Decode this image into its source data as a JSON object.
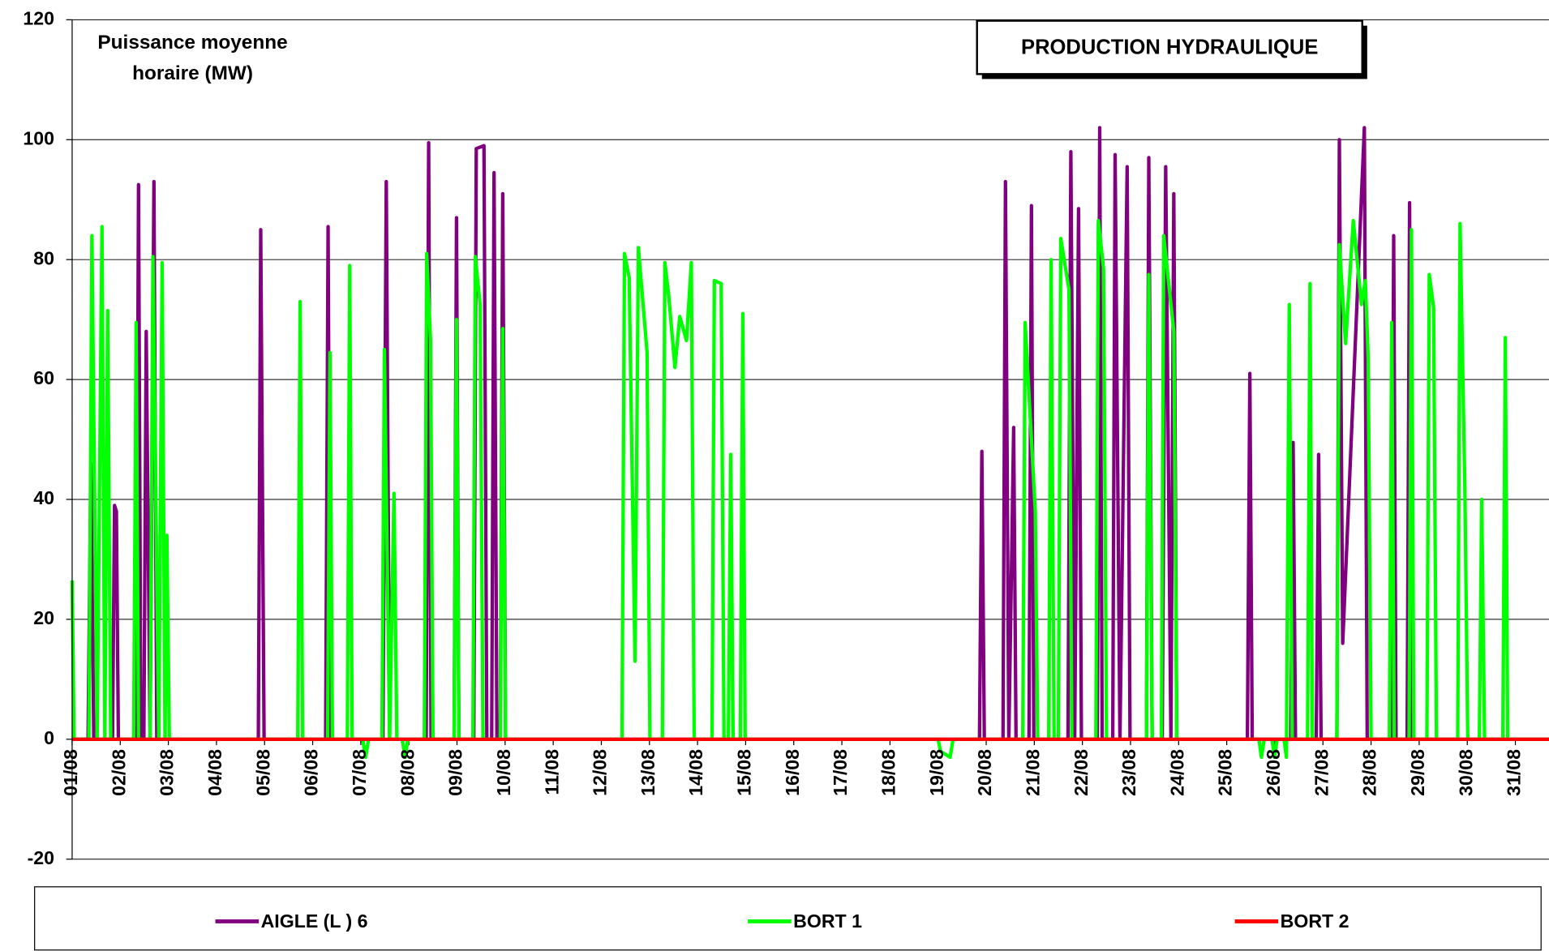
{
  "chart_data": {
    "type": "line",
    "title": "PRODUCTION HYDRAULIQUE",
    "ylabel": [
      "Puissance moyenne",
      "horaire (MW)"
    ],
    "xlim": [
      1,
      31.7
    ],
    "xticks": [
      {
        "value": 1,
        "label": "01/08"
      },
      {
        "value": 2,
        "label": "02/08"
      },
      {
        "value": 3,
        "label": "03/08"
      },
      {
        "value": 4,
        "label": "04/08"
      },
      {
        "value": 5,
        "label": "05/08"
      },
      {
        "value": 6,
        "label": "06/08"
      },
      {
        "value": 7,
        "label": "07/08"
      },
      {
        "value": 8,
        "label": "08/08"
      },
      {
        "value": 9,
        "label": "09/08"
      },
      {
        "value": 10,
        "label": "10/08"
      },
      {
        "value": 11,
        "label": "11/08"
      },
      {
        "value": 12,
        "label": "12/08"
      },
      {
        "value": 13,
        "label": "13/08"
      },
      {
        "value": 14,
        "label": "14/08"
      },
      {
        "value": 15,
        "label": "15/08"
      },
      {
        "value": 16,
        "label": "16/08"
      },
      {
        "value": 17,
        "label": "17/08"
      },
      {
        "value": 18,
        "label": "18/08"
      },
      {
        "value": 19,
        "label": "19/08"
      },
      {
        "value": 20,
        "label": "20/08"
      },
      {
        "value": 21,
        "label": "21/08"
      },
      {
        "value": 22,
        "label": "22/08"
      },
      {
        "value": 23,
        "label": "23/08"
      },
      {
        "value": 24,
        "label": "24/08"
      },
      {
        "value": 25,
        "label": "25/08"
      },
      {
        "value": 26,
        "label": "26/08"
      },
      {
        "value": 27,
        "label": "27/08"
      },
      {
        "value": 28,
        "label": "28/08"
      },
      {
        "value": 29,
        "label": "29/08"
      },
      {
        "value": 30,
        "label": "30/08"
      },
      {
        "value": 31,
        "label": "31/08"
      }
    ],
    "ylim": [
      -20,
      120
    ],
    "yticks": [
      -20,
      0,
      20,
      40,
      60,
      80,
      100,
      120
    ],
    "grid": true,
    "legend": "bottom",
    "series": [
      {
        "name": "AIGLE (L ) 6",
        "color": "#800080",
        "x": [
          1,
          1.33,
          1.39,
          1.45,
          1.84,
          1.88,
          1.92,
          1.96,
          2.33,
          2.38,
          2.43,
          2.49,
          2.54,
          2.62,
          2.7,
          2.76,
          4.87,
          4.92,
          4.99,
          6.27,
          6.32,
          6.37,
          7.46,
          7.53,
          7.6,
          8.36,
          8.41,
          8.46,
          8.94,
          8.99,
          9.04,
          9.35,
          9.4,
          9.56,
          9.62,
          9.72,
          9.77,
          9.83,
          9.9,
          9.95,
          10.01,
          19.86,
          19.91,
          19.96,
          20.35,
          20.4,
          20.47,
          20.57,
          20.62,
          20.89,
          20.94,
          20.99,
          21.7,
          21.76,
          21.84,
          21.92,
          21.98,
          22.31,
          22.36,
          22.41,
          22.63,
          22.68,
          22.78,
          22.93,
          22.99,
          23.33,
          23.38,
          23.45,
          23.66,
          23.73,
          23.84,
          23.9,
          23.96,
          25.43,
          25.48,
          25.53,
          26.33,
          26.38,
          26.43,
          26.86,
          26.91,
          26.96,
          27.29,
          27.34,
          27.41,
          27.86,
          27.92,
          28.42,
          28.47,
          28.52,
          28.75,
          28.8,
          28.85,
          31.7
        ],
        "values": [
          0,
          0,
          46,
          0,
          0,
          39,
          38,
          0,
          0,
          92.5,
          0,
          0,
          68,
          0,
          93,
          0,
          0,
          85,
          0,
          0,
          85.5,
          0,
          0,
          93,
          0,
          0,
          99.5,
          0,
          0,
          87,
          0,
          0,
          98.5,
          99,
          0,
          0,
          94.5,
          0,
          0,
          91,
          0,
          0,
          48,
          0,
          0,
          93,
          0,
          52,
          0,
          0,
          89,
          0,
          0,
          98,
          0,
          88.5,
          0,
          0,
          102,
          0,
          0,
          97.5,
          0,
          95.5,
          0,
          0,
          97,
          0,
          0,
          95.5,
          0,
          91,
          0,
          0,
          61,
          0,
          0,
          49.5,
          0,
          0,
          47.5,
          0,
          0,
          100,
          16,
          102,
          0,
          0,
          84,
          0,
          0,
          89.5,
          0,
          0
        ]
      },
      {
        "name": "BORT 1",
        "color": "#00ff00",
        "x": [
          1,
          1.04,
          1.35,
          1.41,
          1.52,
          1.62,
          1.68,
          1.74,
          1.8,
          2.28,
          2.33,
          2.38,
          2.62,
          2.68,
          2.8,
          2.87,
          2.93,
          2.97,
          3.02,
          5.69,
          5.74,
          5.79,
          6.31,
          6.36,
          6.41,
          6.72,
          6.77,
          6.82,
          7.04,
          7.1,
          7.16,
          7.44,
          7.49,
          7.6,
          7.69,
          7.75,
          7.86,
          7.92,
          7.98,
          8.32,
          8.37,
          8.45,
          8.5,
          8.94,
          8.99,
          9.04,
          9.33,
          9.38,
          9.48,
          9.54,
          9.9,
          9.95,
          10.01,
          12.43,
          12.48,
          12.58,
          12.7,
          12.77,
          12.95,
          13.01,
          13.27,
          13.32,
          13.4,
          13.53,
          13.63,
          13.77,
          13.87,
          13.93,
          14.3,
          14.35,
          14.49,
          14.55,
          14.64,
          14.69,
          14.74,
          14.89,
          14.94,
          14.99,
          19.0,
          19.05,
          19.25,
          19.31,
          20.76,
          20.81,
          21.02,
          21.07,
          21.3,
          21.35,
          21.41,
          21.5,
          21.55,
          21.72,
          21.78,
          22.28,
          22.33,
          22.44,
          22.5,
          23.33,
          23.38,
          23.45,
          23.64,
          23.69,
          23.9,
          23.96,
          25.67,
          25.72,
          25.78,
          25.94,
          25.99,
          26.05,
          26.19,
          26.24,
          26.3,
          26.36,
          26.68,
          26.73,
          26.78,
          27.29,
          27.34,
          27.47,
          27.63,
          27.8,
          27.88,
          27.94,
          28.0,
          28.38,
          28.43,
          28.48,
          28.79,
          28.84,
          28.89,
          29.16,
          29.21,
          29.3,
          29.36,
          29.8,
          29.85,
          29.95,
          30.01,
          30.25,
          30.3,
          30.36,
          30.74,
          30.79,
          30.84,
          31.7
        ],
        "values": [
          26.5,
          0,
          0,
          84,
          0,
          85.5,
          0,
          71.5,
          0,
          0,
          69.5,
          0,
          0,
          80.5,
          0,
          79.5,
          0,
          34,
          0,
          0,
          73,
          0,
          0,
          64.5,
          0,
          0,
          79,
          0,
          0,
          -3,
          0,
          0,
          65,
          0,
          41,
          0,
          0,
          -3,
          0,
          0,
          81,
          66.5,
          0,
          0,
          70,
          0,
          0,
          80.5,
          72.5,
          0,
          0,
          68.5,
          0,
          0,
          81,
          77,
          13,
          82,
          64.5,
          0,
          0,
          79.5,
          74,
          62,
          70.5,
          66.5,
          79.5,
          0,
          0,
          76.5,
          76,
          0,
          0,
          47.5,
          0,
          0,
          71,
          0,
          0,
          -2,
          -3,
          0,
          0,
          69.5,
          38,
          0,
          0,
          80,
          0,
          0,
          83.5,
          75,
          0,
          0,
          86.5,
          78.5,
          0,
          0,
          77.5,
          0,
          0,
          84,
          68,
          0,
          0,
          -3,
          0,
          0,
          -3,
          0,
          0,
          -3,
          72.5,
          0,
          0,
          76,
          0,
          0,
          82.5,
          66,
          86.5,
          72.5,
          76.5,
          63.5,
          0,
          0,
          69.5,
          0,
          0,
          85,
          0,
          0,
          77.5,
          72,
          0,
          0,
          86,
          41.5,
          0,
          0,
          40,
          0,
          0,
          67,
          0,
          0
        ]
      },
      {
        "name": "BORT 2",
        "color": "#ff0000",
        "x": [
          1,
          31.7
        ],
        "values": [
          0,
          0
        ]
      }
    ]
  }
}
